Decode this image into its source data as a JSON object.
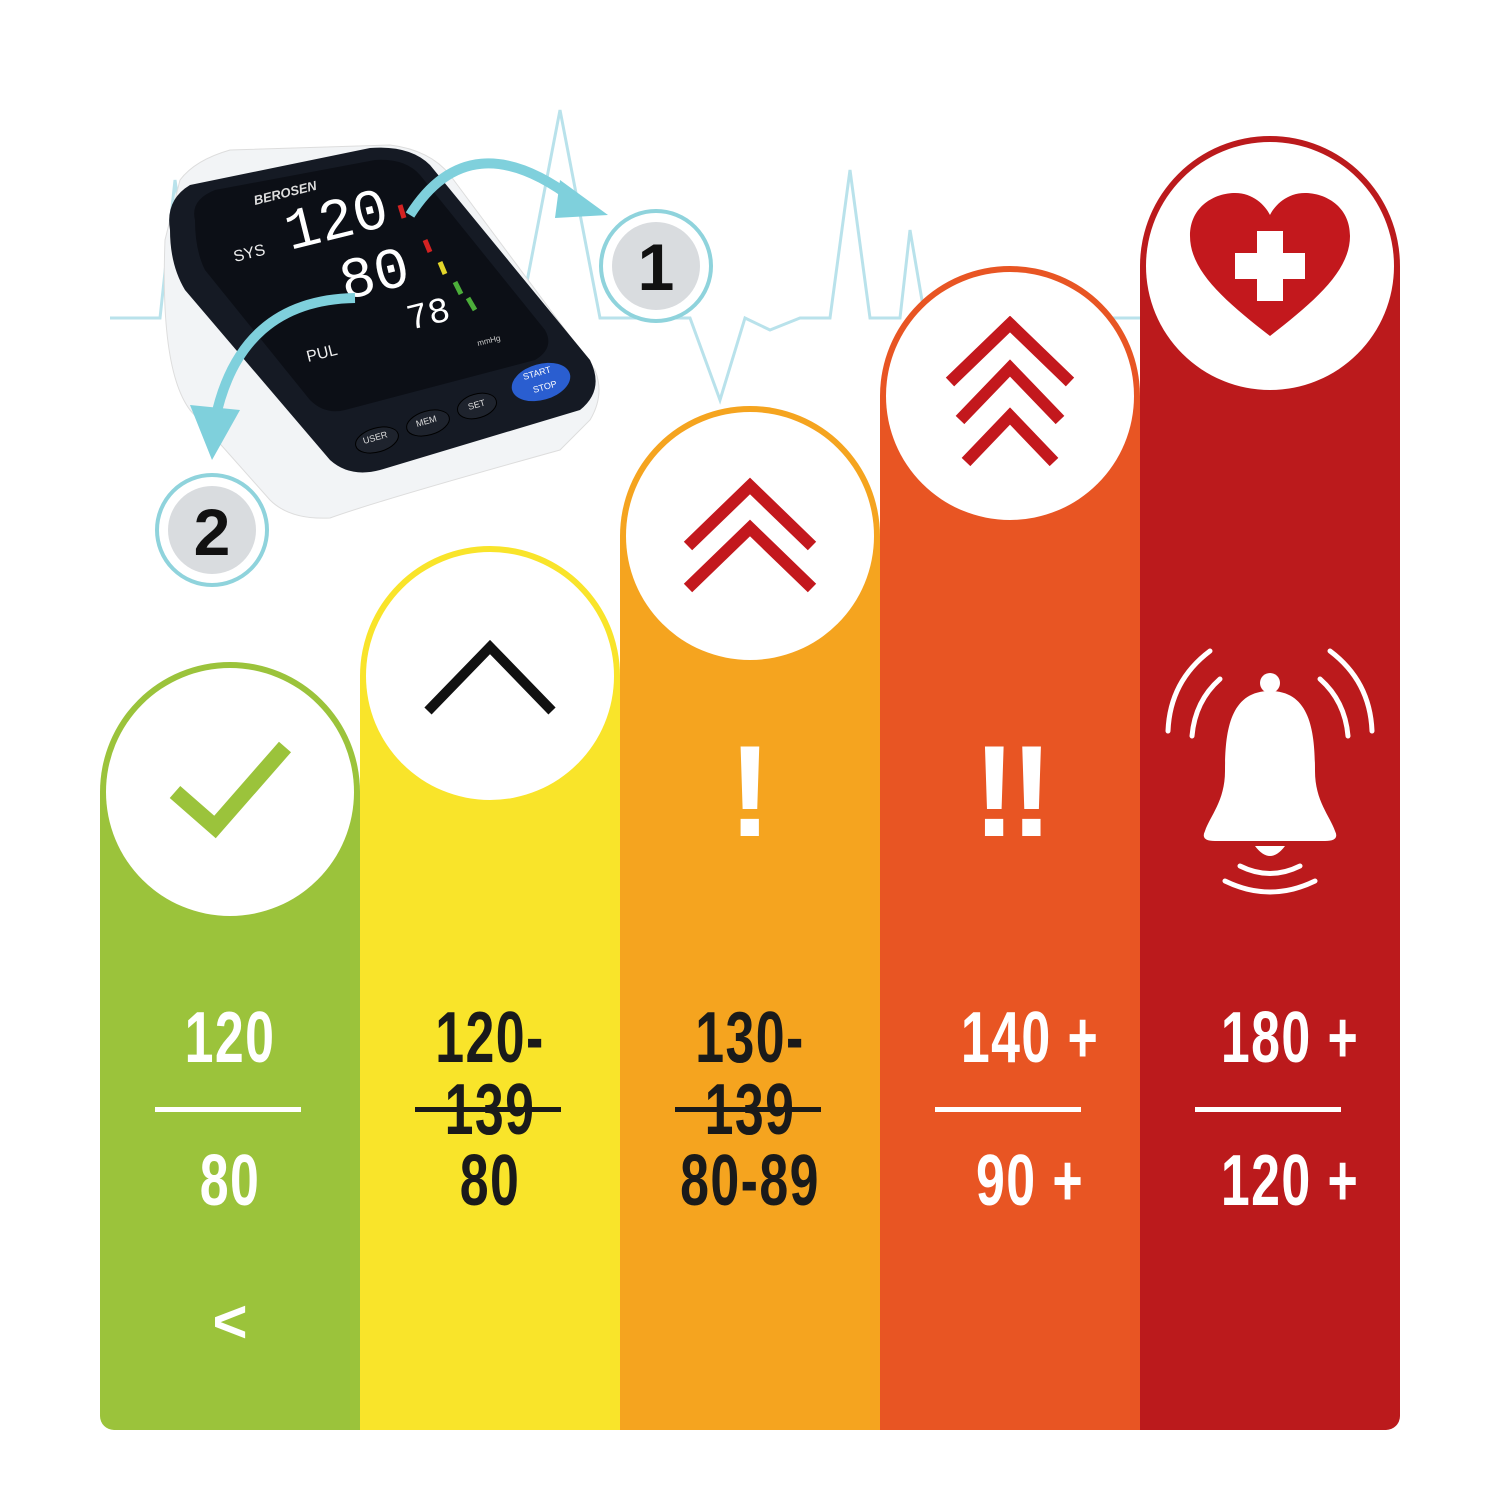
{
  "device": {
    "brand": "BEROSEN",
    "sys_label": "SYS",
    "pul_label": "PUL",
    "reading_sys": "120",
    "reading_dia": "80",
    "reading_pulse": "78",
    "unit": "mmHg",
    "buttons": [
      "USER",
      "MEM",
      "SET"
    ],
    "start_stop": [
      "START",
      "STOP"
    ],
    "callouts": [
      "1",
      "2"
    ]
  },
  "colors": {
    "green": "#9bc33b",
    "yellow": "#f9e42a",
    "orange": "#f5a41f",
    "red_orange": "#e85523",
    "red": "#bb1a1c",
    "ecg": "#a8dbe6"
  },
  "categories": [
    {
      "icon": "check-icon",
      "systolic": "120",
      "diastolic": "80",
      "qualifier": "<",
      "text_color": "#ffffff"
    },
    {
      "icon": "chevron-up-icon",
      "systolic": "120-139",
      "diastolic": "80",
      "text_color": "#1a1a1a"
    },
    {
      "icon": "double-chevron-up-icon",
      "symbol": "!",
      "systolic": "130-139",
      "diastolic": "80-89",
      "text_color": "#1a1a1a"
    },
    {
      "icon": "triple-chevron-up-icon",
      "symbol": "!!",
      "systolic": "140 +",
      "diastolic": "90 +",
      "text_color": "#ffffff"
    },
    {
      "icon": "heart-plus-icon",
      "alert_icon": "bell-alarm-icon",
      "systolic": "180 +",
      "diastolic": "120 +",
      "text_color": "#ffffff"
    }
  ]
}
